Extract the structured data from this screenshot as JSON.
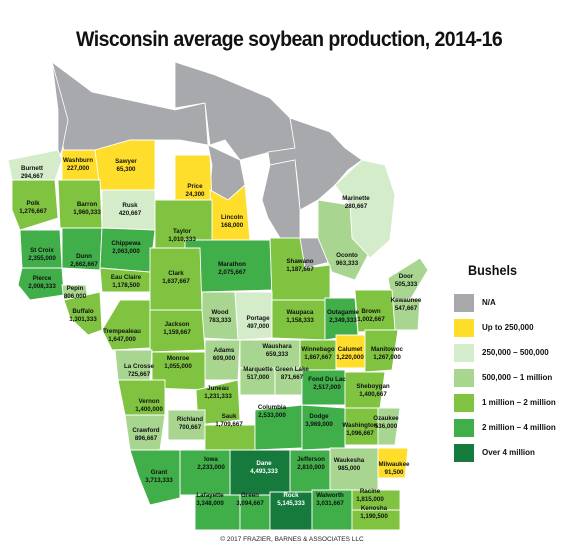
{
  "title": "Wisconsin  average soybean production, 2014-16",
  "legend": {
    "title": "Bushels",
    "items": [
      {
        "label": "N/A",
        "color": "#a7a9ac"
      },
      {
        "label": "Up to 250,000",
        "color": "#ffde2b"
      },
      {
        "label": "250,000 – 500,000",
        "color": "#d4ecc9"
      },
      {
        "label": "500,000 – 1 million",
        "color": "#a8d58f"
      },
      {
        "label": "1 million – 2 million",
        "color": "#7fc341"
      },
      {
        "label": "2 million – 4 million",
        "color": "#40ae49"
      },
      {
        "label": "Over 4 million",
        "color": "#157a3c"
      }
    ]
  },
  "credit": "© 2017 FRAZIER, BARNES & ASSOCIATES LLC",
  "counties": [
    {
      "name": "Burnett",
      "value": "294,667"
    },
    {
      "name": "Washburn",
      "value": "227,000"
    },
    {
      "name": "Sawyer",
      "value": "65,300"
    },
    {
      "name": "Price",
      "value": "24,300"
    },
    {
      "name": "Polk",
      "value": "1,276,667"
    },
    {
      "name": "Barron",
      "value": "1,960,333"
    },
    {
      "name": "Rusk",
      "value": "420,667"
    },
    {
      "name": "Marinette",
      "value": "280,667"
    },
    {
      "name": "Lincoln",
      "value": "168,000"
    },
    {
      "name": "Taylor",
      "value": "1,010,333"
    },
    {
      "name": "Oconto",
      "value": "963,333"
    },
    {
      "name": "St Croix",
      "value": "2,355,000"
    },
    {
      "name": "Dunn",
      "value": "2,662,667"
    },
    {
      "name": "Chippewa",
      "value": "2,063,000"
    },
    {
      "name": "Marathon",
      "value": "2,075,667"
    },
    {
      "name": "Shawano",
      "value": "1,187,667"
    },
    {
      "name": "Door",
      "value": "505,333"
    },
    {
      "name": "Pierce",
      "value": "2,008,333"
    },
    {
      "name": "Pepin",
      "value": "806,000"
    },
    {
      "name": "Eau Claire",
      "value": "1,178,500"
    },
    {
      "name": "Clark",
      "value": "1,637,667"
    },
    {
      "name": "Kewaunee",
      "value": "547,667"
    },
    {
      "name": "Buffalo",
      "value": "1,301,333"
    },
    {
      "name": "Wood",
      "value": "783,333"
    },
    {
      "name": "Portage",
      "value": "497,000"
    },
    {
      "name": "Waupaca",
      "value": "1,158,333"
    },
    {
      "name": "Outagamie",
      "value": "2,349,333"
    },
    {
      "name": "Brown",
      "value": "1,002,667"
    },
    {
      "name": "Trempealeau",
      "value": "1,647,000"
    },
    {
      "name": "Jackson",
      "value": "1,159,667"
    },
    {
      "name": "Adams",
      "value": "609,000"
    },
    {
      "name": "Waushara",
      "value": "659,333"
    },
    {
      "name": "Winnebago",
      "value": "1,867,667"
    },
    {
      "name": "Calumet",
      "value": "1,220,000"
    },
    {
      "name": "Manitowoc",
      "value": "1,267,000"
    },
    {
      "name": "La Crosse",
      "value": "725,667"
    },
    {
      "name": "Monroe",
      "value": "1,055,000"
    },
    {
      "name": "Marquette",
      "value": "517,000"
    },
    {
      "name": "Green Lake",
      "value": "871,667"
    },
    {
      "name": "Fond Du Lac",
      "value": "2,517,000"
    },
    {
      "name": "Sheboygan",
      "value": "1,400,667"
    },
    {
      "name": "Vernon",
      "value": "1,400,000"
    },
    {
      "name": "Juneau",
      "value": "1,231,333"
    },
    {
      "name": "Crawford",
      "value": "896,667"
    },
    {
      "name": "Richland",
      "value": "700,667"
    },
    {
      "name": "Sauk",
      "value": "1,709,667"
    },
    {
      "name": "Columbia",
      "value": "2,533,000"
    },
    {
      "name": "Dodge",
      "value": "3,969,000"
    },
    {
      "name": "Washington",
      "value": "1,096,667"
    },
    {
      "name": "Ozaukee",
      "value": "536,000"
    },
    {
      "name": "Dane",
      "value": "4,493,333"
    },
    {
      "name": "Iowa",
      "value": "2,233,000"
    },
    {
      "name": "Jefferson",
      "value": "2,810,000"
    },
    {
      "name": "Waukesha",
      "value": "985,000"
    },
    {
      "name": "Milwaukee",
      "value": "91,500"
    },
    {
      "name": "Grant",
      "value": "3,713,333"
    },
    {
      "name": "Lafayette",
      "value": "3,348,000"
    },
    {
      "name": "Green",
      "value": "3,094,667"
    },
    {
      "name": "Rock",
      "value": "5,145,333"
    },
    {
      "name": "Walworth",
      "value": "3,031,667"
    },
    {
      "name": "Racine",
      "value": "1,815,000"
    },
    {
      "name": "Kenosha",
      "value": "1,190,500"
    }
  ]
}
